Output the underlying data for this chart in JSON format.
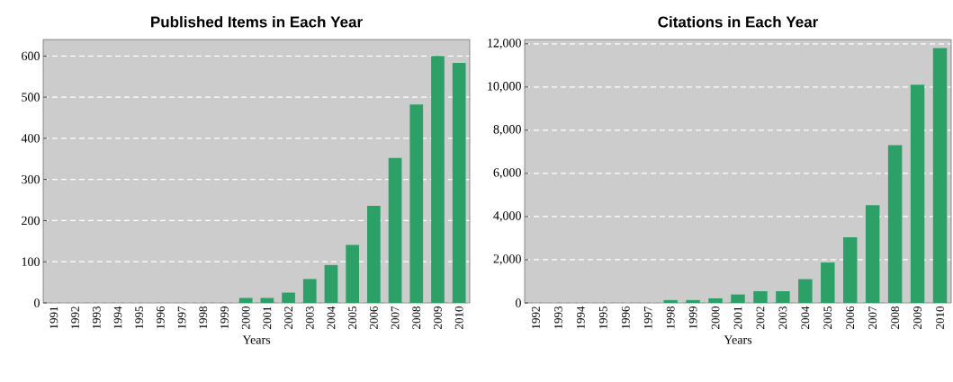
{
  "chart_data": [
    {
      "type": "bar",
      "title": "Published Items in Each Year",
      "xlabel": "Years",
      "categories": [
        "1991",
        "1992",
        "1993",
        "1994",
        "1995",
        "1996",
        "1997",
        "1998",
        "1999",
        "2000",
        "2001",
        "2002",
        "2003",
        "2004",
        "2005",
        "2006",
        "2007",
        "2008",
        "2009",
        "2010"
      ],
      "values": [
        0,
        0,
        0,
        0,
        0,
        0,
        0,
        0,
        0,
        12,
        12,
        25,
        58,
        92,
        141,
        236,
        352,
        482,
        600,
        583
      ],
      "color": "#2ca066",
      "ylim": [
        0,
        640
      ],
      "yticks": [
        0,
        100,
        200,
        300,
        400,
        500,
        600
      ],
      "grid": "y"
    },
    {
      "type": "bar",
      "title": "Citations in Each Year",
      "xlabel": "Years",
      "categories": [
        "1992",
        "1993",
        "1994",
        "1995",
        "1996",
        "1997",
        "1998",
        "1999",
        "2000",
        "2001",
        "2002",
        "2003",
        "2004",
        "2005",
        "2006",
        "2007",
        "2008",
        "2009",
        "2010"
      ],
      "values": [
        0,
        0,
        0,
        0,
        0,
        0,
        130,
        130,
        210,
        390,
        540,
        540,
        1100,
        1870,
        3040,
        4530,
        7310,
        10110,
        11800
      ],
      "color": "#2ca066",
      "ylim": [
        0,
        12200
      ],
      "yticks": [
        0,
        {
          "value": 2000,
          "label": "2,000"
        },
        {
          "value": 4000,
          "label": "4,000"
        },
        {
          "value": 6000,
          "label": "6,000"
        },
        {
          "value": 8000,
          "label": "8,000"
        },
        {
          "value": 10000,
          "label": "10,000"
        },
        {
          "value": 12000,
          "label": "12,000"
        }
      ],
      "grid": "y"
    }
  ]
}
